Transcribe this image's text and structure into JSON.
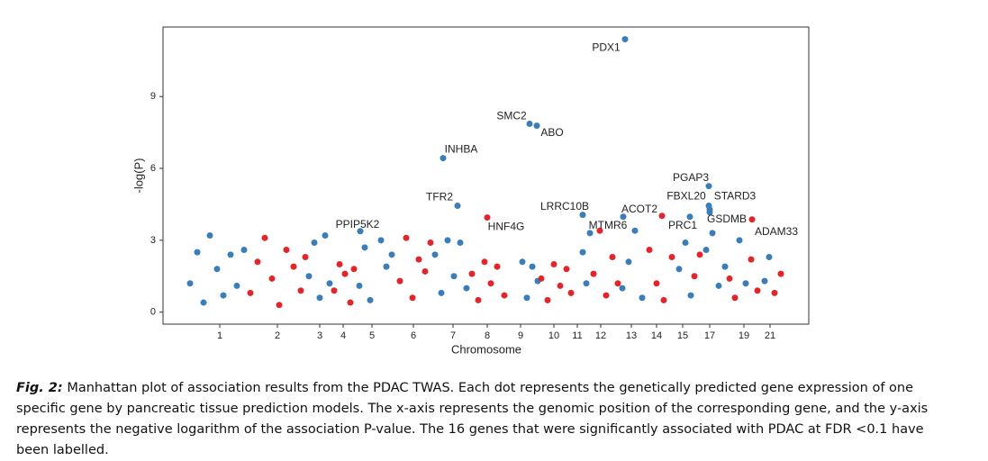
{
  "chart_data": {
    "type": "scatter",
    "xlabel": "Chromosome",
    "ylabel": "-log(P)",
    "xlim": [
      0,
      717
    ],
    "ylim": [
      -0.5,
      11.9
    ],
    "xticks": [
      {
        "value": 63,
        "label": "1"
      },
      {
        "value": 127,
        "label": "2"
      },
      {
        "value": 174,
        "label": "3"
      },
      {
        "value": 200,
        "label": "4"
      },
      {
        "value": 232,
        "label": "5"
      },
      {
        "value": 278,
        "label": "6"
      },
      {
        "value": 322,
        "label": "7"
      },
      {
        "value": 360,
        "label": "8"
      },
      {
        "value": 397,
        "label": "9"
      },
      {
        "value": 434,
        "label": "10"
      },
      {
        "value": 460,
        "label": "11"
      },
      {
        "value": 486,
        "label": "12"
      },
      {
        "value": 520,
        "label": "13"
      },
      {
        "value": 548,
        "label": "14"
      },
      {
        "value": 577,
        "label": "15"
      },
      {
        "value": 607,
        "label": "17"
      },
      {
        "value": 645,
        "label": "19"
      },
      {
        "value": 674,
        "label": "21"
      }
    ],
    "yticks": [
      0,
      3,
      6,
      9
    ],
    "series": [
      {
        "color": "#3a7db8",
        "x": [
          30,
          38,
          45,
          52,
          60,
          67,
          75,
          82,
          90
        ],
        "values": [
          1.2,
          2.5,
          0.4,
          3.2,
          1.8,
          0.7,
          2.4,
          1.1,
          2.6
        ]
      },
      {
        "color": "#e0262a",
        "x": [
          97,
          105,
          113,
          121,
          129,
          137,
          145,
          153,
          158
        ],
        "values": [
          0.8,
          2.1,
          3.1,
          1.4,
          0.3,
          2.6,
          1.9,
          0.9,
          2.3
        ]
      },
      {
        "color": "#3a7db8",
        "x": [
          162,
          168,
          174,
          180,
          185
        ],
        "values": [
          1.5,
          2.9,
          0.6,
          3.2,
          1.2
        ]
      },
      {
        "color": "#e0262a",
        "x": [
          190,
          196,
          202,
          208,
          212
        ],
        "values": [
          0.9,
          2.0,
          1.6,
          0.4,
          1.8
        ]
      },
      {
        "color": "#3a7db8",
        "x": [
          218,
          224,
          230,
          242,
          248,
          254
        ],
        "values": [
          1.1,
          2.7,
          0.5,
          3.0,
          1.9,
          2.4
        ]
      },
      {
        "color": "#e0262a",
        "x": [
          263,
          270,
          277,
          284,
          291,
          297
        ],
        "values": [
          1.3,
          3.1,
          0.6,
          2.2,
          1.7,
          2.9
        ]
      },
      {
        "color": "#3a7db8",
        "x": [
          302,
          309,
          316,
          323,
          330,
          337
        ],
        "values": [
          2.4,
          0.8,
          3.0,
          1.5,
          2.9,
          1.0
        ]
      },
      {
        "color": "#e0262a",
        "x": [
          343,
          350,
          357,
          364,
          371,
          379
        ],
        "values": [
          1.6,
          0.5,
          2.1,
          1.2,
          1.9,
          0.7
        ]
      },
      {
        "color": "#3a7db8",
        "x": [
          399,
          404,
          410,
          416
        ],
        "values": [
          2.1,
          0.6,
          1.9,
          1.3
        ]
      },
      {
        "color": "#e0262a",
        "x": [
          420,
          427,
          434,
          441,
          448,
          453
        ],
        "values": [
          1.4,
          0.5,
          2.0,
          1.1,
          1.8,
          0.8
        ]
      },
      {
        "color": "#3a7db8",
        "x": [
          466,
          470,
          474
        ],
        "values": [
          2.5,
          1.2,
          3.3
        ]
      },
      {
        "color": "#e0262a",
        "x": [
          478,
          485,
          492,
          499,
          505
        ],
        "values": [
          1.6,
          3.4,
          0.7,
          2.3,
          1.2
        ]
      },
      {
        "color": "#3a7db8",
        "x": [
          510,
          517,
          524,
          532
        ],
        "values": [
          1.0,
          2.1,
          3.4,
          0.6
        ]
      },
      {
        "color": "#e0262a",
        "x": [
          540,
          548,
          556,
          565
        ],
        "values": [
          2.6,
          1.2,
          0.5,
          2.3
        ]
      },
      {
        "color": "#3a7db8",
        "x": [
          573,
          580,
          586
        ],
        "values": [
          1.8,
          2.9,
          0.7
        ]
      },
      {
        "color": "#e0262a",
        "x": [
          590,
          596
        ],
        "values": [
          1.5,
          2.4
        ]
      },
      {
        "color": "#3a7db8",
        "x": [
          603,
          610,
          617,
          624
        ],
        "values": [
          2.6,
          3.3,
          1.1,
          1.9
        ]
      },
      {
        "color": "#e0262a",
        "x": [
          629,
          635
        ],
        "values": [
          1.4,
          0.6
        ]
      },
      {
        "color": "#3a7db8",
        "x": [
          640,
          647
        ],
        "values": [
          3.0,
          1.2
        ]
      },
      {
        "color": "#e0262a",
        "x": [
          653,
          660
        ],
        "values": [
          2.2,
          0.9
        ]
      },
      {
        "color": "#3a7db8",
        "x": [
          668,
          673
        ],
        "values": [
          1.3,
          2.3
        ]
      },
      {
        "color": "#e0262a",
        "x": [
          679,
          686
        ],
        "values": [
          0.8,
          1.6
        ]
      }
    ],
    "genes": [
      {
        "label": "PDX1",
        "x": 513,
        "y": 11.39,
        "color": "#3a7db8"
      },
      {
        "label": "SMC2",
        "x": 407,
        "y": 7.86,
        "color": "#3a7db8"
      },
      {
        "label": "ABO",
        "x": 415,
        "y": 7.78,
        "color": "#3a7db8"
      },
      {
        "label": "INHBA",
        "x": 311,
        "y": 6.43,
        "color": "#3a7db8"
      },
      {
        "label": "TFR2",
        "x": 327,
        "y": 4.44,
        "color": "#3a7db8"
      },
      {
        "label": "HNF4G",
        "x": 360,
        "y": 3.95,
        "color": "#e0262a"
      },
      {
        "label": "PPIP5K2",
        "x": 219,
        "y": 3.38,
        "color": "#3a7db8"
      },
      {
        "label": "LRRC10B",
        "x": 466,
        "y": 4.06,
        "color": "#3a7db8"
      },
      {
        "label": "MTMR6",
        "x": 511,
        "y": 3.98,
        "color": "#3a7db8"
      },
      {
        "label": "ACOT2",
        "x": 554,
        "y": 4.02,
        "color": "#e0262a"
      },
      {
        "label": "PRC1",
        "x": 585,
        "y": 3.98,
        "color": "#3a7db8"
      },
      {
        "label": "PGAP3",
        "x": 606,
        "y": 5.26,
        "color": "#3a7db8"
      },
      {
        "label": "FBXL20",
        "x": 606,
        "y": 4.44,
        "color": "#3a7db8"
      },
      {
        "label": "STARD3",
        "x": 607,
        "y": 4.29,
        "color": "#3a7db8"
      },
      {
        "label": "GSDMB",
        "x": 607,
        "y": 4.17,
        "color": "#3a7db8"
      },
      {
        "label": "ADAM33",
        "x": 654,
        "y": 3.87,
        "color": "#e0262a"
      }
    ]
  },
  "caption": {
    "label": "Fig. 2:",
    "text": "Manhattan plot of association results from the PDAC TWAS. Each dot represents the genetically predicted gene expression of one specific gene by pancreatic tissue prediction models. The x-axis represents the genomic position of the corresponding gene, and the y-axis represents the negative logarithm of the association P-value. The 16 genes that were significantly associated with PDAC at FDR <0.1 have been labelled."
  }
}
